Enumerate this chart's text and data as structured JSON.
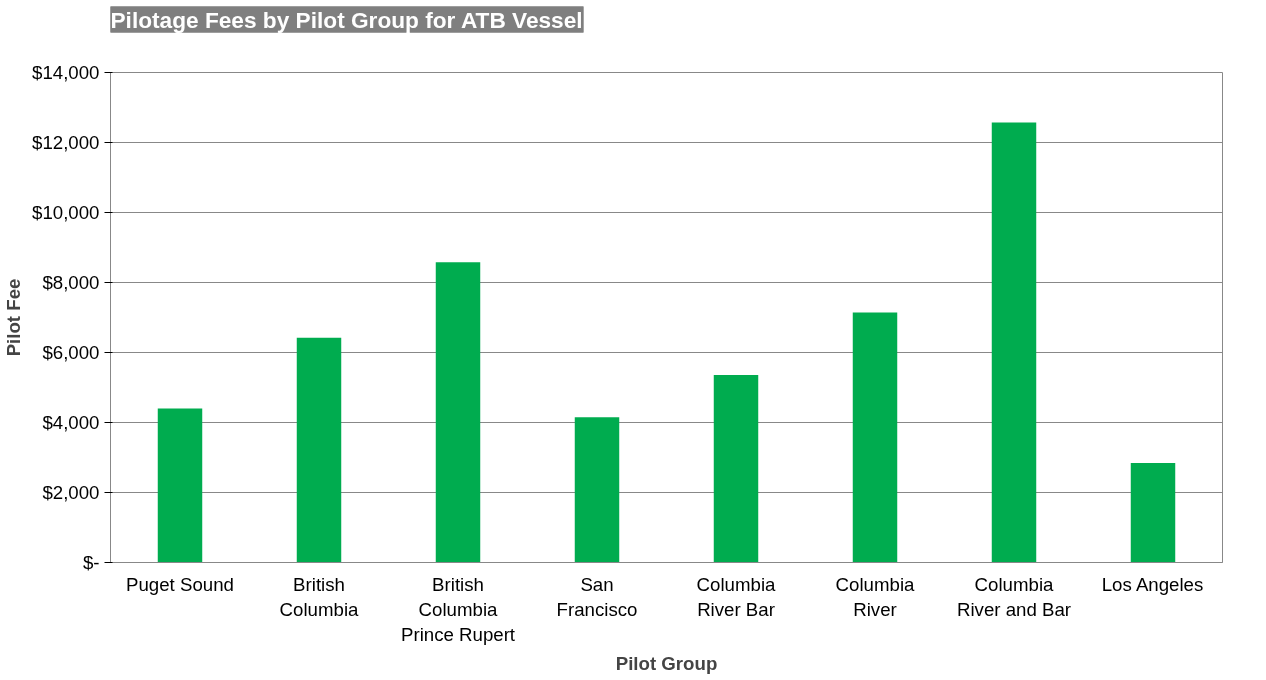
{
  "chart_data": {
    "type": "bar",
    "title": "Pilotage Fees by Pilot Group for ATB Vessel",
    "xlabel": "Pilot Group",
    "ylabel": "Pilot Fee",
    "categories": [
      "Puget Sound",
      "British\nColumbia",
      "British\nColumbia\nPrince Rupert",
      "San\nFrancisco",
      "Columbia\nRiver Bar",
      "Columbia\nRiver",
      "Columbia\nRiver and Bar",
      "Los Angeles"
    ],
    "values": [
      4400,
      6420,
      8580,
      4150,
      5360,
      7140,
      12570,
      2840
    ],
    "color": "#00ac4f",
    "ylim": [
      0,
      14000
    ],
    "yticks": [
      {
        "value": 0,
        "label": "$-"
      },
      {
        "value": 2000,
        "label": "$2,000"
      },
      {
        "value": 4000,
        "label": "$4,000"
      },
      {
        "value": 6000,
        "label": "$6,000"
      },
      {
        "value": 8000,
        "label": "$8,000"
      },
      {
        "value": 10000,
        "label": "$10,000"
      },
      {
        "value": 12000,
        "label": "$12,000"
      },
      {
        "value": 14000,
        "label": "$14,000"
      }
    ],
    "grid": "y"
  }
}
